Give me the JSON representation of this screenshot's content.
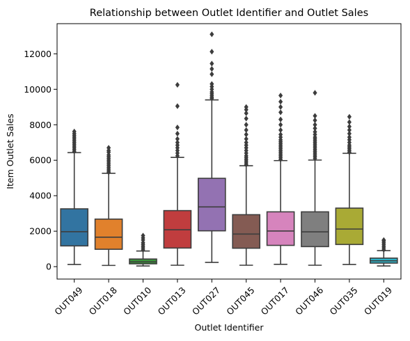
{
  "chart_data": {
    "type": "box",
    "title": "Relationship between Outlet Identifier and Outlet Sales",
    "xlabel": "Outlet Identifier",
    "ylabel": "Item Outlet Sales",
    "categories": [
      "OUT049",
      "OUT018",
      "OUT010",
      "OUT013",
      "OUT027",
      "OUT045",
      "OUT017",
      "OUT046",
      "OUT035",
      "OUT019"
    ],
    "ylim": [
      -700,
      13700
    ],
    "yticks": [
      0,
      2000,
      4000,
      6000,
      8000,
      10000,
      12000
    ],
    "ytick_labels": [
      "0",
      "2000",
      "4000",
      "6000",
      "8000",
      "10000",
      "12000"
    ],
    "grid": false,
    "legend": "none",
    "boxes": [
      {
        "category": "OUT049",
        "color": "#3274a1",
        "whisker_low": 120,
        "q1": 1170,
        "median": 1970,
        "q3": 3260,
        "whisker_high": 6430,
        "outliers": [
          6500,
          6600,
          6700,
          6800,
          6900,
          7000,
          7100,
          7200,
          7300,
          7400,
          7500,
          7620
        ]
      },
      {
        "category": "OUT018",
        "color": "#e1812c",
        "whisker_low": 70,
        "q1": 980,
        "median": 1660,
        "q3": 2680,
        "whisker_high": 5260,
        "outliers": [
          5320,
          5400,
          5500,
          5600,
          5700,
          5800,
          5900,
          6000,
          6100,
          6200,
          6300,
          6450,
          6550,
          6700
        ]
      },
      {
        "category": "OUT010",
        "color": "#3a923a",
        "whisker_low": 40,
        "q1": 160,
        "median": 270,
        "q3": 430,
        "whisker_high": 880,
        "outliers": [
          950,
          1050,
          1150,
          1250,
          1350,
          1500,
          1620,
          1750
        ]
      },
      {
        "category": "OUT013",
        "color": "#c03d3e",
        "whisker_low": 80,
        "q1": 1050,
        "median": 2080,
        "q3": 3160,
        "whisker_high": 6160,
        "outliers": [
          6250,
          6400,
          6550,
          6700,
          6850,
          7000,
          7200,
          7500,
          7850,
          9050,
          10250
        ]
      },
      {
        "category": "OUT027",
        "color": "#9372b2",
        "whisker_low": 240,
        "q1": 2020,
        "median": 3370,
        "q3": 4980,
        "whisker_high": 9400,
        "outliers": [
          9480,
          9550,
          9650,
          9750,
          9850,
          10000,
          10150,
          10300,
          10850,
          11150,
          11450,
          12120,
          13100
        ]
      },
      {
        "category": "OUT045",
        "color": "#845b53",
        "whisker_low": 80,
        "q1": 1040,
        "median": 1840,
        "q3": 2930,
        "whisker_high": 5690,
        "outliers": [
          5750,
          5850,
          5950,
          6050,
          6150,
          6250,
          6400,
          6550,
          6700,
          6850,
          7000,
          7200,
          7450,
          7700,
          8000,
          8350,
          8650,
          8850,
          9000
        ]
      },
      {
        "category": "OUT017",
        "color": "#d684bd",
        "whisker_low": 130,
        "q1": 1200,
        "median": 2010,
        "q3": 3090,
        "whisker_high": 5980,
        "outliers": [
          6050,
          6150,
          6250,
          6350,
          6450,
          6550,
          6650,
          6750,
          6850,
          6950,
          7050,
          7150,
          7300,
          7450,
          7700,
          8000,
          8300,
          8700,
          9000,
          9300,
          9650
        ]
      },
      {
        "category": "OUT046",
        "color": "#7f7f7f",
        "whisker_low": 80,
        "q1": 1130,
        "median": 1960,
        "q3": 3090,
        "whisker_high": 6010,
        "outliers": [
          6100,
          6200,
          6300,
          6400,
          6500,
          6600,
          6700,
          6800,
          6900,
          7000,
          7100,
          7200,
          7300,
          7450,
          7600,
          7800,
          8000,
          8250,
          8500,
          9800
        ]
      },
      {
        "category": "OUT035",
        "color": "#a9aa35",
        "whisker_low": 120,
        "q1": 1250,
        "median": 2120,
        "q3": 3300,
        "whisker_high": 6390,
        "outliers": [
          6450,
          6550,
          6650,
          6750,
          6850,
          7000,
          7150,
          7300,
          7500,
          7700,
          7900,
          8150,
          8450
        ]
      },
      {
        "category": "OUT019",
        "color": "#2eb2c8",
        "whisker_low": 40,
        "q1": 200,
        "median": 330,
        "q3": 480,
        "whisker_high": 900,
        "outliers": [
          950,
          1050,
          1150,
          1250,
          1350,
          1450,
          1500
        ]
      }
    ]
  }
}
